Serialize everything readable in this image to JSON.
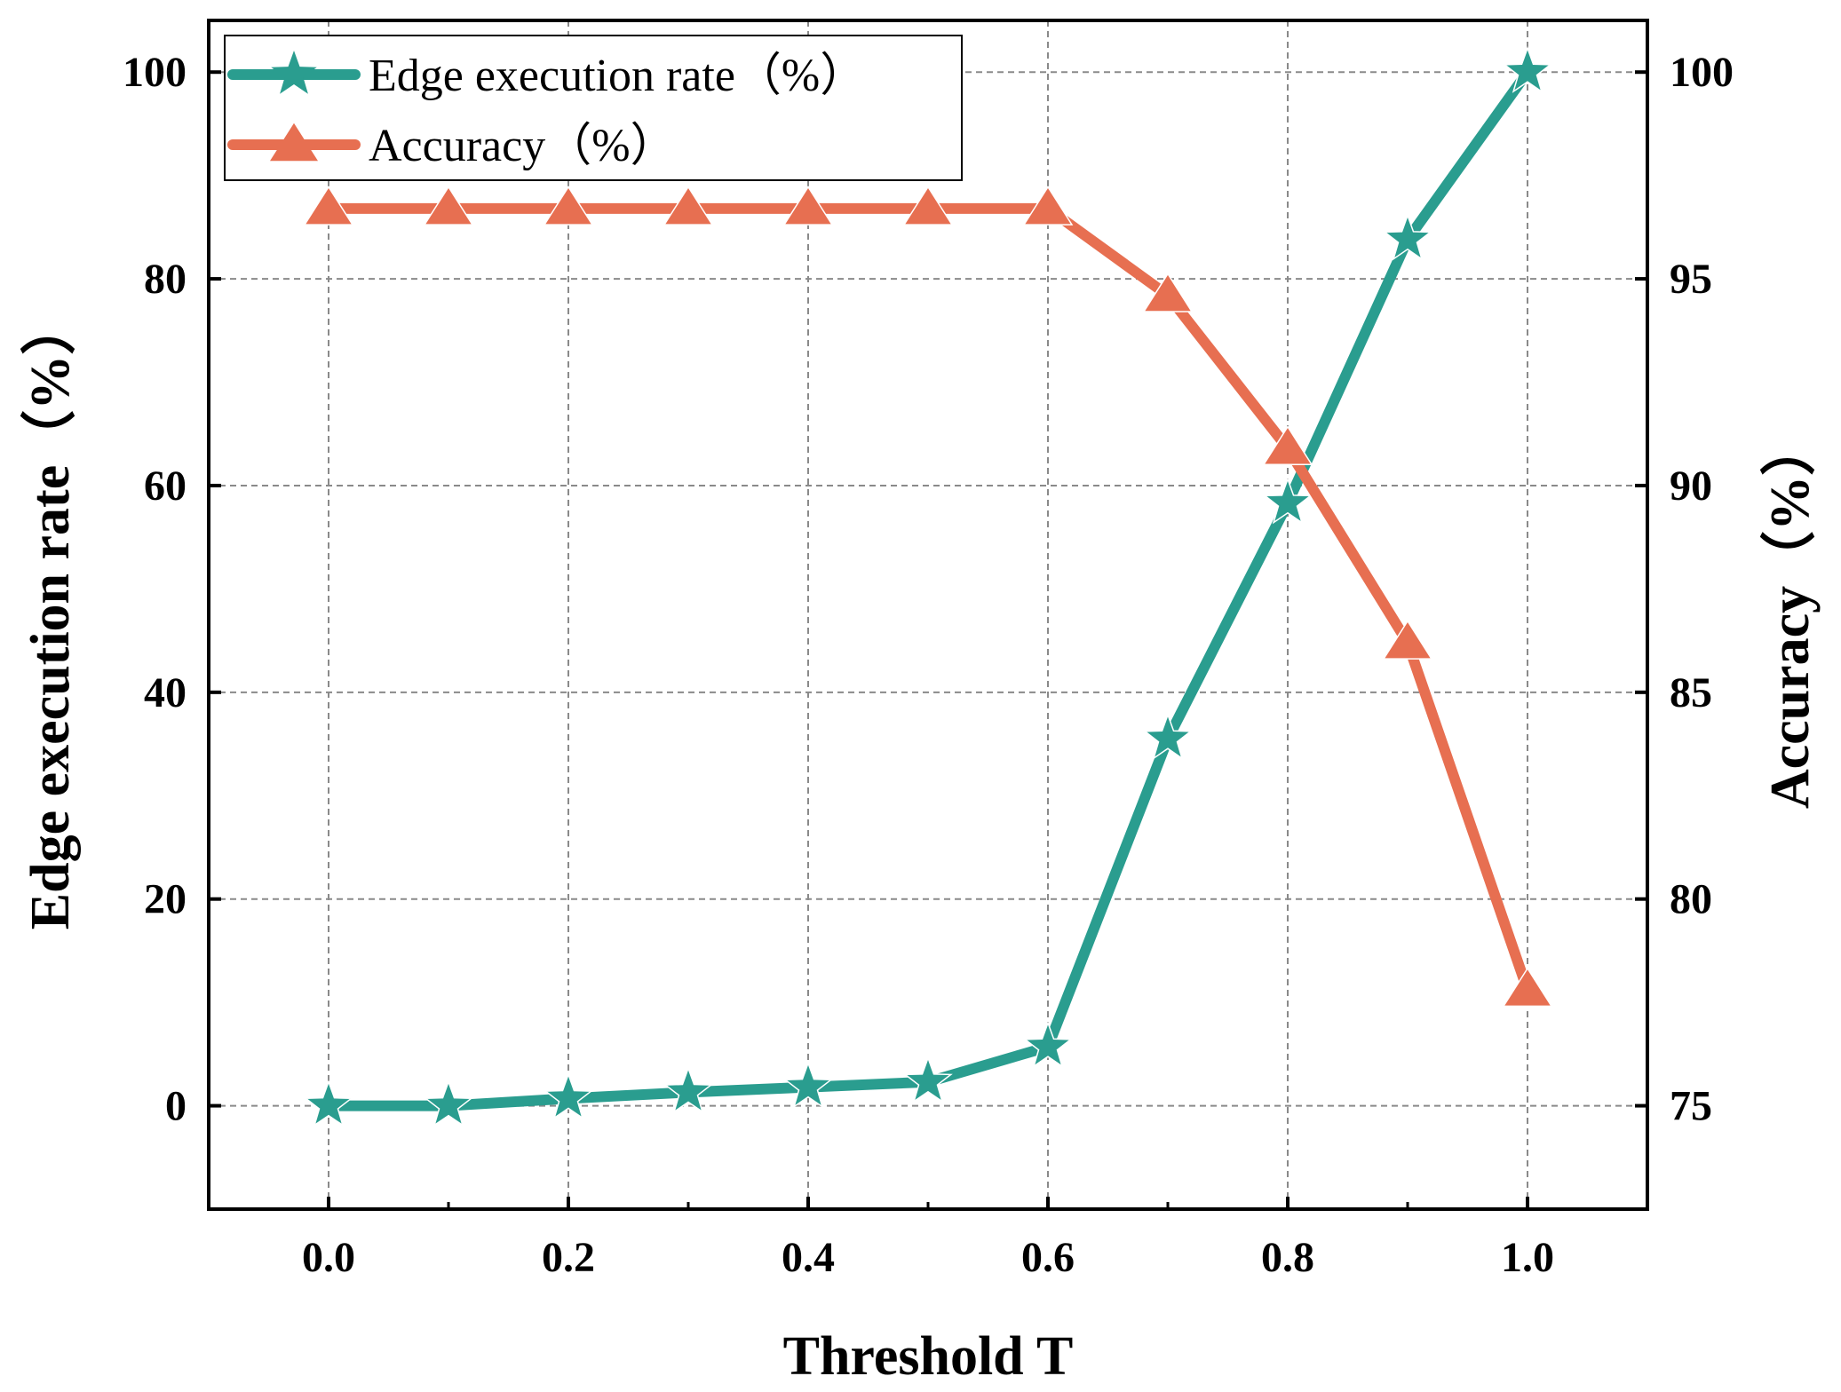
{
  "chart_data": {
    "type": "line",
    "title": "",
    "xlabel": "Threshold T",
    "ylabel_left": "Edge execution rate（%）",
    "ylabel_right": "Accuracy（%）",
    "x": [
      0.0,
      0.1,
      0.2,
      0.3,
      0.4,
      0.5,
      0.6,
      0.7,
      0.8,
      0.9,
      1.0
    ],
    "xlim": [
      -0.1,
      1.1
    ],
    "ylim_left": [
      -10,
      105
    ],
    "ylim_right": [
      72.5,
      101.25
    ],
    "xticks": [
      0.0,
      0.2,
      0.4,
      0.6,
      0.8,
      1.0
    ],
    "xtick_labels": [
      "0.0",
      "0.2",
      "0.4",
      "0.6",
      "0.8",
      "1.0"
    ],
    "yticks_left": [
      0,
      20,
      40,
      60,
      80,
      100
    ],
    "ytick_labels_left": [
      "0",
      "20",
      "40",
      "60",
      "80",
      "100"
    ],
    "yticks_right": [
      75,
      80,
      85,
      90,
      95,
      100
    ],
    "ytick_labels_right": [
      "75",
      "80",
      "85",
      "90",
      "95",
      "100"
    ],
    "grid": true,
    "legend_position": "top-left",
    "series": [
      {
        "name": "Edge execution rate（%）",
        "axis": "left",
        "marker": "star",
        "color": "#2a9d8f",
        "values": [
          0,
          0,
          0.7,
          1.3,
          1.8,
          2.3,
          5.7,
          35.5,
          58.3,
          83.8,
          100
        ]
      },
      {
        "name": "Accuracy（%）",
        "axis": "right",
        "marker": "triangle",
        "color": "#e76f51",
        "values": [
          96.7,
          96.7,
          96.7,
          96.7,
          96.7,
          96.7,
          96.7,
          94.6,
          90.9,
          86.2,
          77.8
        ]
      }
    ]
  }
}
